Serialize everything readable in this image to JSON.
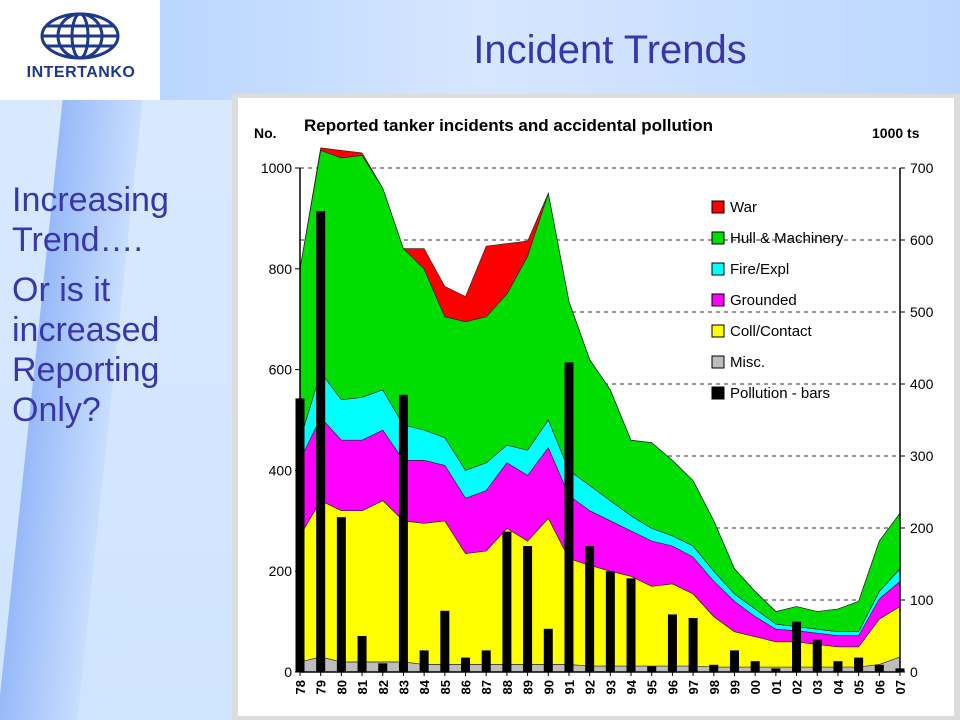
{
  "slide": {
    "title": "Incident Trends",
    "logo_text": "INTERTANKO",
    "side_paragraphs": [
      "Increasing Trend….",
      "Or is it increased Reporting Only?"
    ]
  },
  "chart_data": {
    "type": "area",
    "title": "Reported tanker incidents and accidental pollution",
    "ylabel_left": "No.",
    "ylabel_right": "1000 ts",
    "ylim_left": [
      0,
      1000
    ],
    "yticks_left": [
      0,
      200,
      400,
      600,
      800,
      1000
    ],
    "ylim_right": [
      0,
      700
    ],
    "yticks_right": [
      0,
      100,
      200,
      300,
      400,
      500,
      600,
      700
    ],
    "grid": "dashed horizontal",
    "legend_position": "right",
    "categories": [
      "78",
      "79",
      "80",
      "81",
      "82",
      "83",
      "84",
      "85",
      "86",
      "87",
      "88",
      "89",
      "90",
      "91",
      "92",
      "93",
      "94",
      "95",
      "96",
      "97",
      "98",
      "99",
      "00",
      "01",
      "02",
      "03",
      "04",
      "05",
      "06",
      "07"
    ],
    "stacked_series": [
      {
        "name": "Misc.",
        "color": "#bdbdbd",
        "values": [
          20,
          30,
          20,
          20,
          20,
          20,
          15,
          15,
          15,
          15,
          15,
          15,
          15,
          15,
          12,
          12,
          12,
          12,
          12,
          12,
          10,
          10,
          10,
          10,
          10,
          10,
          10,
          10,
          15,
          30
        ]
      },
      {
        "name": "Coll/Contact",
        "color": "#ffff00",
        "values": [
          250,
          310,
          300,
          300,
          320,
          280,
          280,
          285,
          220,
          225,
          270,
          245,
          290,
          210,
          200,
          188,
          178,
          158,
          163,
          143,
          100,
          70,
          60,
          50,
          50,
          45,
          40,
          40,
          90,
          100
        ]
      },
      {
        "name": "Grounded",
        "color": "#ff00ff",
        "values": [
          150,
          165,
          140,
          140,
          140,
          120,
          125,
          110,
          110,
          120,
          130,
          130,
          140,
          125,
          108,
          100,
          90,
          90,
          75,
          73,
          70,
          60,
          40,
          25,
          22,
          22,
          22,
          22,
          40,
          50
        ]
      },
      {
        "name": "Fire/Expl",
        "color": "#00ffff",
        "values": [
          40,
          90,
          80,
          85,
          80,
          70,
          60,
          55,
          55,
          55,
          35,
          50,
          55,
          50,
          50,
          40,
          30,
          25,
          20,
          22,
          20,
          15,
          15,
          10,
          8,
          8,
          8,
          8,
          15,
          25
        ]
      },
      {
        "name": "Hull & Machinery",
        "color": "#00dd00",
        "values": [
          340,
          440,
          480,
          480,
          400,
          350,
          320,
          240,
          295,
          290,
          300,
          385,
          450,
          335,
          250,
          220,
          150,
          170,
          150,
          130,
          100,
          50,
          35,
          25,
          40,
          35,
          45,
          60,
          100,
          110
        ]
      },
      {
        "name": "War",
        "color": "#ff0000",
        "values": [
          0,
          5,
          15,
          5,
          0,
          0,
          40,
          60,
          50,
          140,
          100,
          30,
          0,
          0,
          0,
          0,
          0,
          0,
          0,
          0,
          0,
          0,
          0,
          0,
          0,
          0,
          0,
          0,
          0,
          0
        ]
      }
    ],
    "bar_series": {
      "name": "Pollution - bars",
      "color": "#000000",
      "axis": "right",
      "values": [
        380,
        640,
        215,
        50,
        12,
        385,
        30,
        85,
        20,
        30,
        195,
        175,
        60,
        430,
        175,
        140,
        130,
        8,
        80,
        75,
        10,
        30,
        15,
        5,
        70,
        45,
        15,
        20,
        10,
        5
      ]
    },
    "legend": [
      "War",
      "Hull & Machinery",
      "Fire/Expl",
      "Grounded",
      "Coll/Contact",
      "Misc.",
      "Pollution - bars"
    ],
    "legend_colors": [
      "#ff0000",
      "#00dd00",
      "#00ffff",
      "#ff00ff",
      "#ffff00",
      "#bdbdbd",
      "#000000"
    ]
  }
}
